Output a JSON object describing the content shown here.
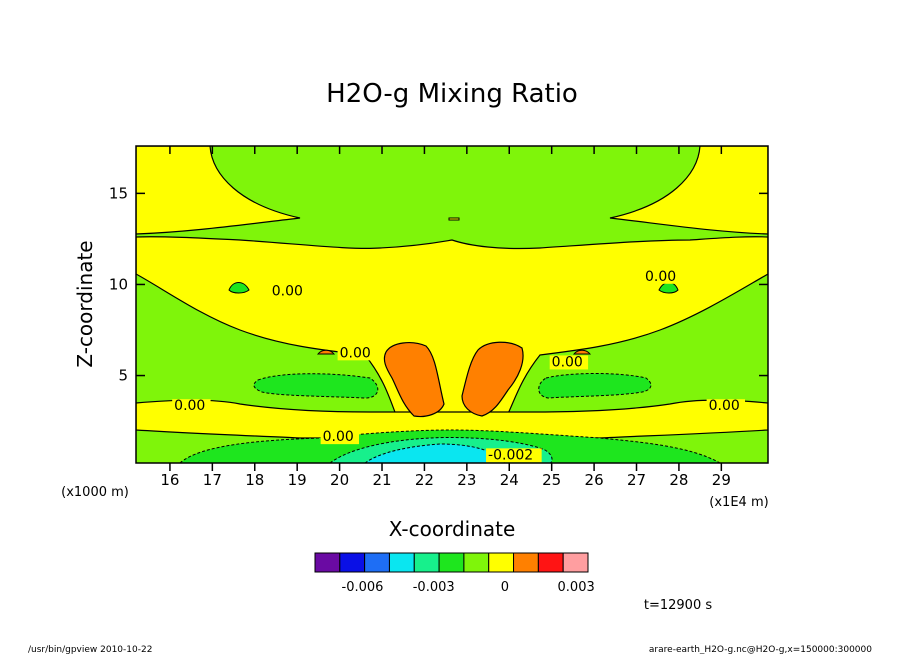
{
  "chart_data": {
    "type": "contour",
    "title": "H2O-g Mixing Ratio",
    "xlabel": "X-coordinate",
    "ylabel": "Z-coordinate",
    "x_unit_label": "(x1E4 m)",
    "y_unit_label": "(x1000 m)",
    "xlim": [
      15.2,
      30.1
    ],
    "ylim": [
      0.2,
      17.6
    ],
    "x_ticks": [
      16,
      17,
      18,
      19,
      20,
      21,
      22,
      23,
      24,
      25,
      26,
      27,
      28,
      29
    ],
    "y_ticks": [
      5,
      10,
      15
    ],
    "time_label": "t=12900 s",
    "contour_labels": [
      {
        "text": "0.00",
        "x": 18.4,
        "y": 9.4
      },
      {
        "text": "0.00",
        "x": 27.2,
        "y": 10.2
      },
      {
        "text": "0.00",
        "x": 20.0,
        "y": 6.0
      },
      {
        "text": "0.00",
        "x": 25.0,
        "y": 5.5
      },
      {
        "text": "0.00",
        "x": 16.1,
        "y": 3.1
      },
      {
        "text": "0.00",
        "x": 28.7,
        "y": 3.1
      },
      {
        "text": "0.00",
        "x": 19.6,
        "y": 1.4
      },
      {
        "text": "-0.002",
        "x": 23.5,
        "y": 0.4
      }
    ],
    "colorbar": {
      "colors": [
        "#6a0aa3",
        "#0a10e6",
        "#1e6ef5",
        "#0ae6f0",
        "#17f08c",
        "#1ee61e",
        "#7ff50a",
        "#ffff00",
        "#ff8000",
        "#ff1414",
        "#ff9ea0"
      ],
      "tick_labels": [
        "-0.006",
        "-0.003",
        "0",
        "0.003"
      ],
      "tick_values": [
        -0.006,
        -0.003,
        0,
        0.003
      ],
      "min": -0.008,
      "max": 0.0035
    },
    "colors": {
      "background": "#7ff50a",
      "positive_low": "#ffff00",
      "positive_high": "#ff8000",
      "negative_low": "#1ee61e",
      "negative_mid": "#17f08c",
      "negative_high": "#0ae6f0"
    }
  },
  "footer": {
    "left": "/usr/bin/gpview   2010-10-22",
    "right": "arare-earth_H2O-g.nc@H2O-g,x=150000:300000"
  }
}
